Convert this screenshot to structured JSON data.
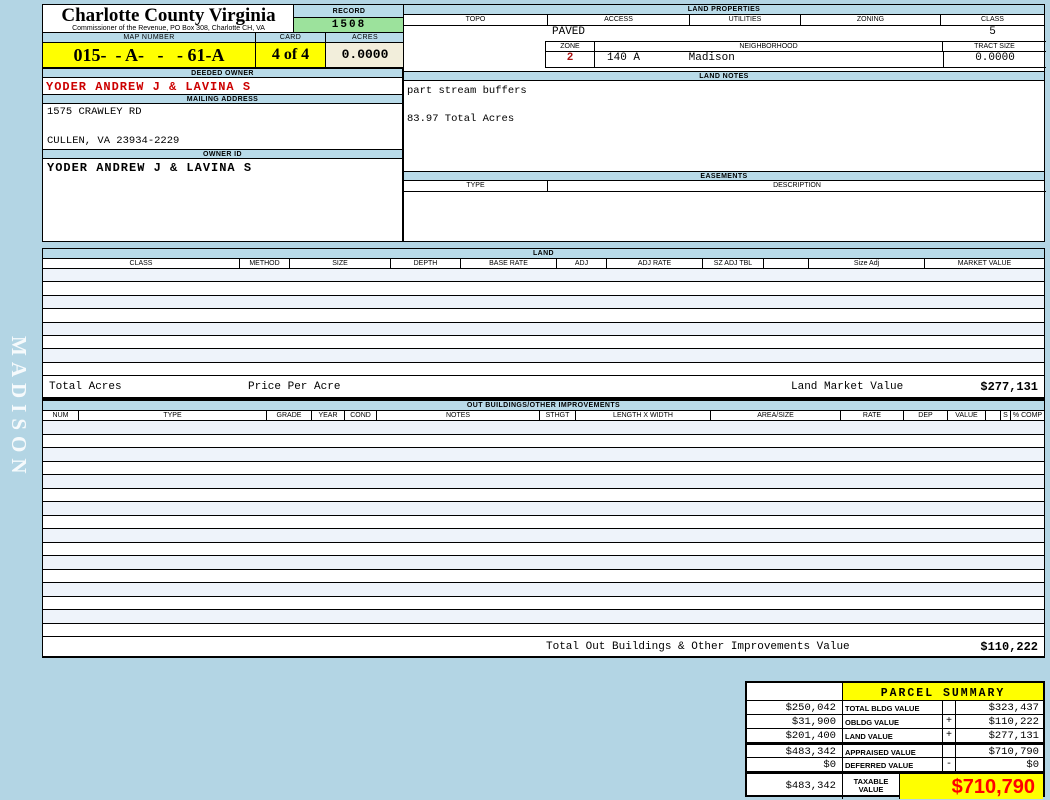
{
  "page": {
    "sidebar_text": "MADISON"
  },
  "header": {
    "county_title": "Charlotte County Virginia",
    "commissioner_line": "Commissioner of the Revenue, PO Box 308, Charlotte CH, VA",
    "record_label": "RECORD",
    "record_value": "1508",
    "map_number_label": "MAP NUMBER",
    "map_number_value": "015-  - A-   -   - 61-A",
    "card_label": "CARD",
    "card_value": "4 of 4",
    "acres_label": "ACRES",
    "acres_value": "0.0000"
  },
  "owner": {
    "deeded_owner_label": "DEEDED OWNER",
    "deeded_owner": "YODER ANDREW J & LAVINA S",
    "mailing_address_label": "MAILING ADDRESS",
    "address_line1": "1575 CRAWLEY RD",
    "address_line2": "CULLEN, VA 23934-2229",
    "owner_id_label": "OWNER ID",
    "owner_id": "YODER ANDREW J & LAVINA S"
  },
  "land_properties": {
    "title": "LAND PROPERTIES",
    "headers": [
      "TOPO",
      "ACCESS",
      "UTILITIES",
      "ZONING",
      "CLASS"
    ],
    "topo_value": "",
    "access_value": "PAVED",
    "utilities_value": "",
    "zoning_value": "",
    "class_value": "5",
    "zone_label": "ZONE",
    "zone_value": "2",
    "neighborhood_label": "NEIGHBORHOOD",
    "neighborhood_code": "140 A",
    "neighborhood_name": "Madison",
    "tract_size_label": "TRACT SIZE",
    "tract_size_value": "0.0000"
  },
  "land_notes": {
    "title": "LAND NOTES",
    "line1": "part stream buffers",
    "line2": "83.97 Total Acres"
  },
  "easements": {
    "title": "EASEMENTS",
    "type_label": "TYPE",
    "description_label": "DESCRIPTION"
  },
  "land_table": {
    "title": "LAND",
    "headers": [
      "CLASS",
      "METHOD",
      "SIZE",
      "DEPTH",
      "BASE RATE",
      "ADJ",
      "ADJ RATE",
      "SZ ADJ TBL",
      "",
      "Size Adj",
      "MARKET VALUE"
    ],
    "empty_row_count": 8,
    "total_acres_label": "Total Acres",
    "price_per_acre_label": "Price Per Acre",
    "market_value_label": "Land Market Value",
    "market_value": "$277,131"
  },
  "out_buildings": {
    "title": "OUT BUILDINGS/OTHER IMPROVEMENTS",
    "headers": [
      "NUM",
      "TYPE",
      "GRADE",
      "YEAR",
      "COND",
      "NOTES",
      "STHGT",
      "LENGTH X WIDTH",
      "AREA/SIZE",
      "RATE",
      "DEP",
      "VALUE",
      "",
      "S",
      "% COMP"
    ],
    "empty_row_count": 16,
    "total_label": "Total Out Buildings & Other Improvements Value",
    "total_value": "$110,222"
  },
  "parcel_summary": {
    "title": "PARCEL SUMMARY",
    "rows": [
      {
        "left": "$250,042",
        "label": "TOTAL BLDG VALUE",
        "op": "",
        "value": "$323,437"
      },
      {
        "left": "$31,900",
        "label": "OBLDG VALUE",
        "op": "+",
        "value": "$110,222"
      },
      {
        "left": "$201,400",
        "label": "LAND VALUE",
        "op": "+",
        "value": "$277,131"
      },
      {
        "left": "$483,342",
        "label": "APPRAISED VALUE",
        "op": "",
        "value": "$710,790"
      },
      {
        "left": "$0",
        "label": "DEFERRED VALUE",
        "op": "-",
        "value": "$0"
      }
    ],
    "taxable": {
      "left": "$483,342",
      "label_line1": "TAXABLE",
      "label_line2": "VALUE",
      "value": "$710,790"
    }
  },
  "colors": {
    "page_bg": "#b3d5e4",
    "band_blue": "#b9dbe9",
    "record_green": "#9ce29c",
    "highlight_yellow": "#ffff00",
    "acres_cream": "#f2eedb",
    "owner_red": "#cc0000",
    "taxable_red": "#ff0000",
    "row_tint": "#eef3fa"
  }
}
